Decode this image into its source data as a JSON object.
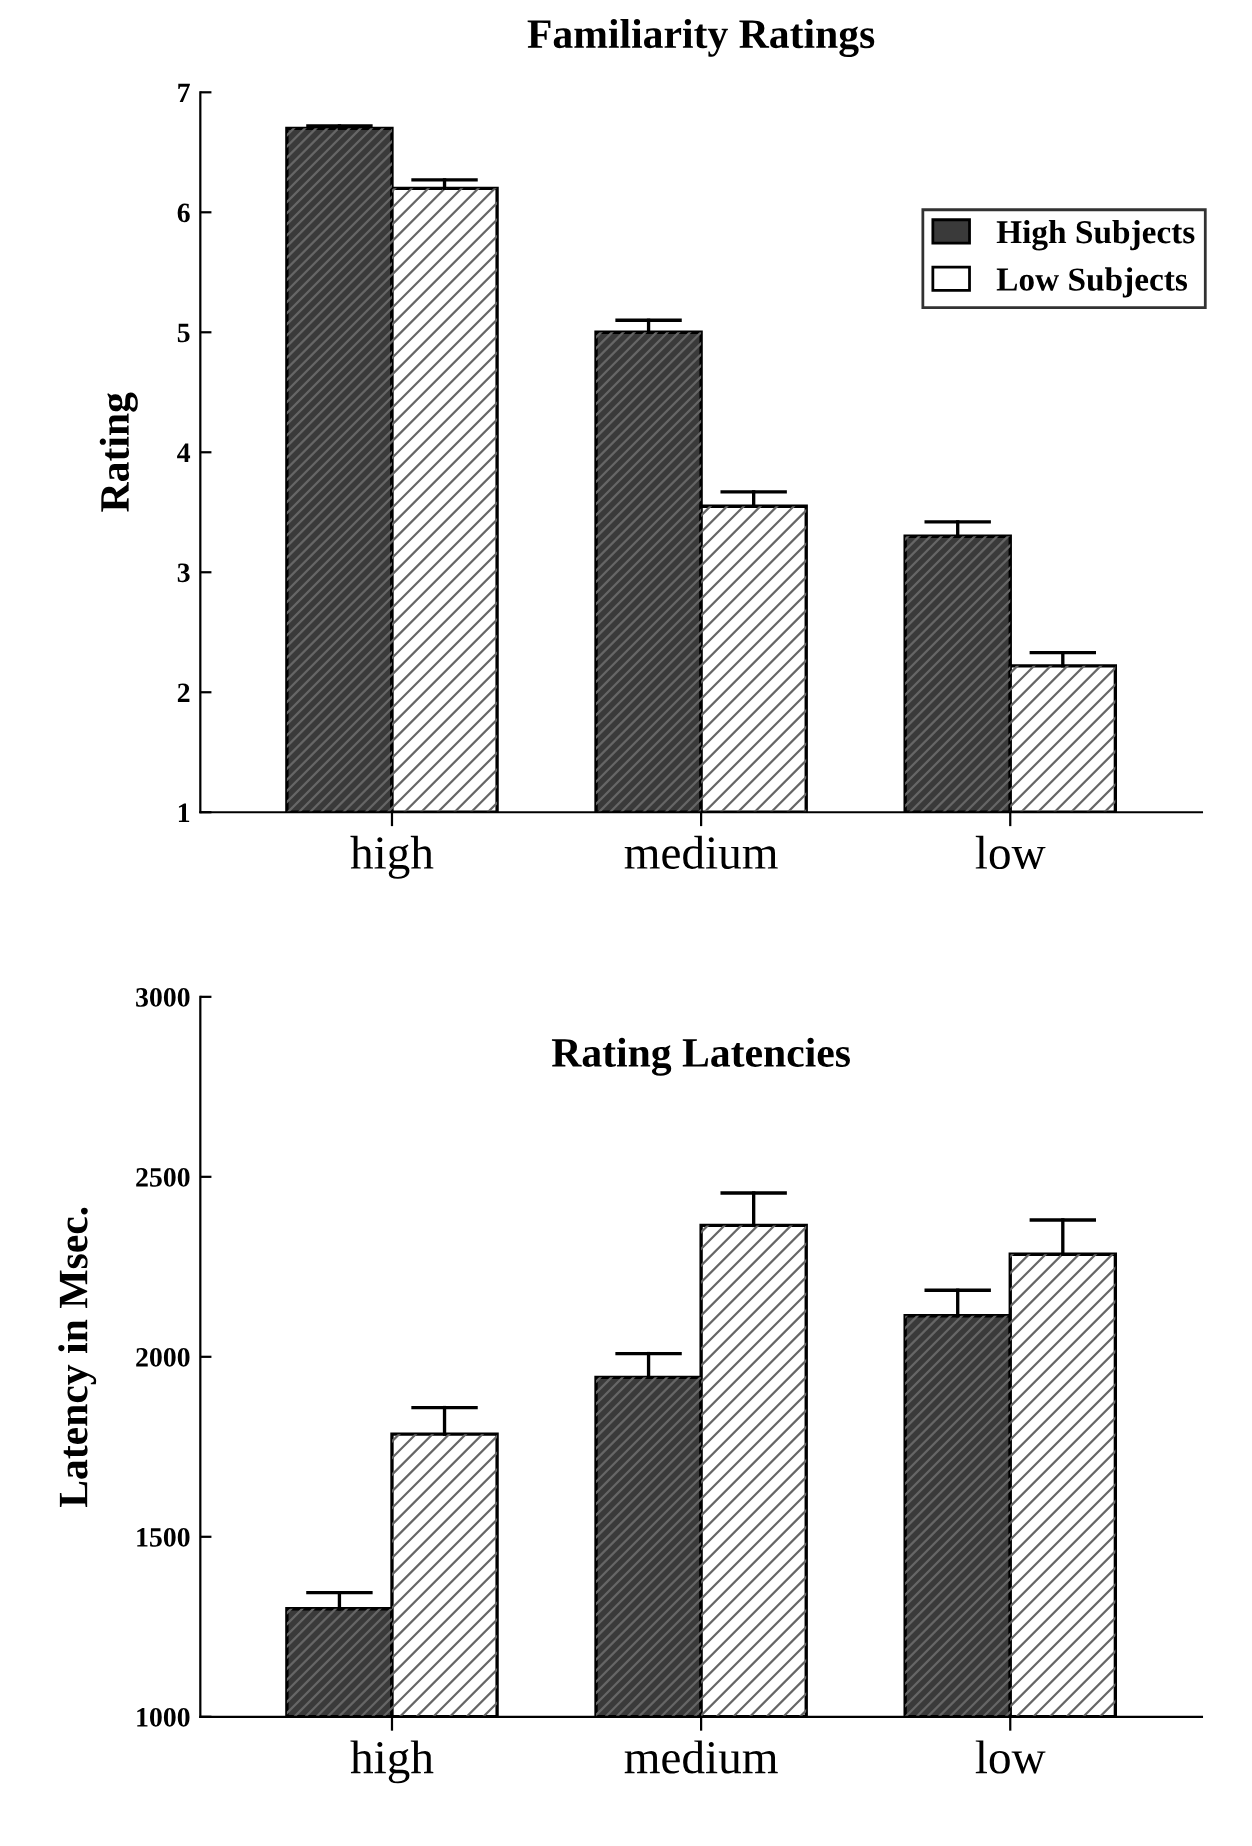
{
  "chart_data": [
    {
      "type": "bar",
      "title": "Familiarity Ratings",
      "ylabel": "Rating",
      "categories": [
        "high",
        "medium",
        "low"
      ],
      "series": [
        {
          "name": "High Subjects",
          "color": "#3a3a3a",
          "values": [
            6.7,
            5.0,
            3.3
          ],
          "errors": [
            [
              6.7,
              6.72
            ],
            [
              5.0,
              5.1
            ],
            [
              3.3,
              3.42
            ]
          ]
        },
        {
          "name": "Low Subjects",
          "color": "#ffffff",
          "values": [
            6.2,
            3.55,
            2.22
          ],
          "errors": [
            [
              6.2,
              6.27
            ],
            [
              3.55,
              3.67
            ],
            [
              2.22,
              2.33
            ]
          ]
        }
      ],
      "ylim": [
        1,
        7
      ],
      "yticks": [
        1,
        2,
        3,
        4,
        5,
        6,
        7
      ],
      "legend": "top right",
      "grid": false
    },
    {
      "type": "bar",
      "title": "Rating Latencies",
      "ylabel": "Latency in Msec.",
      "categories": [
        "high",
        "medium",
        "low"
      ],
      "series": [
        {
          "color": "#3a3a3a",
          "values": [
            1300,
            1943,
            2114
          ],
          "errors": [
            [
              1300,
              1345
            ],
            [
              1943,
              2009
            ],
            [
              2114,
              2185
            ]
          ]
        },
        {
          "color": "#ffffff",
          "values": [
            1785,
            2365,
            2285
          ],
          "errors": [
            [
              1785,
              1859
            ],
            [
              2365,
              2455
            ],
            [
              2285,
              2380
            ]
          ]
        }
      ],
      "ylim": [
        1000,
        3000
      ],
      "yticks": [
        1000,
        1500,
        2000,
        2500,
        3000
      ],
      "grid": false
    }
  ]
}
